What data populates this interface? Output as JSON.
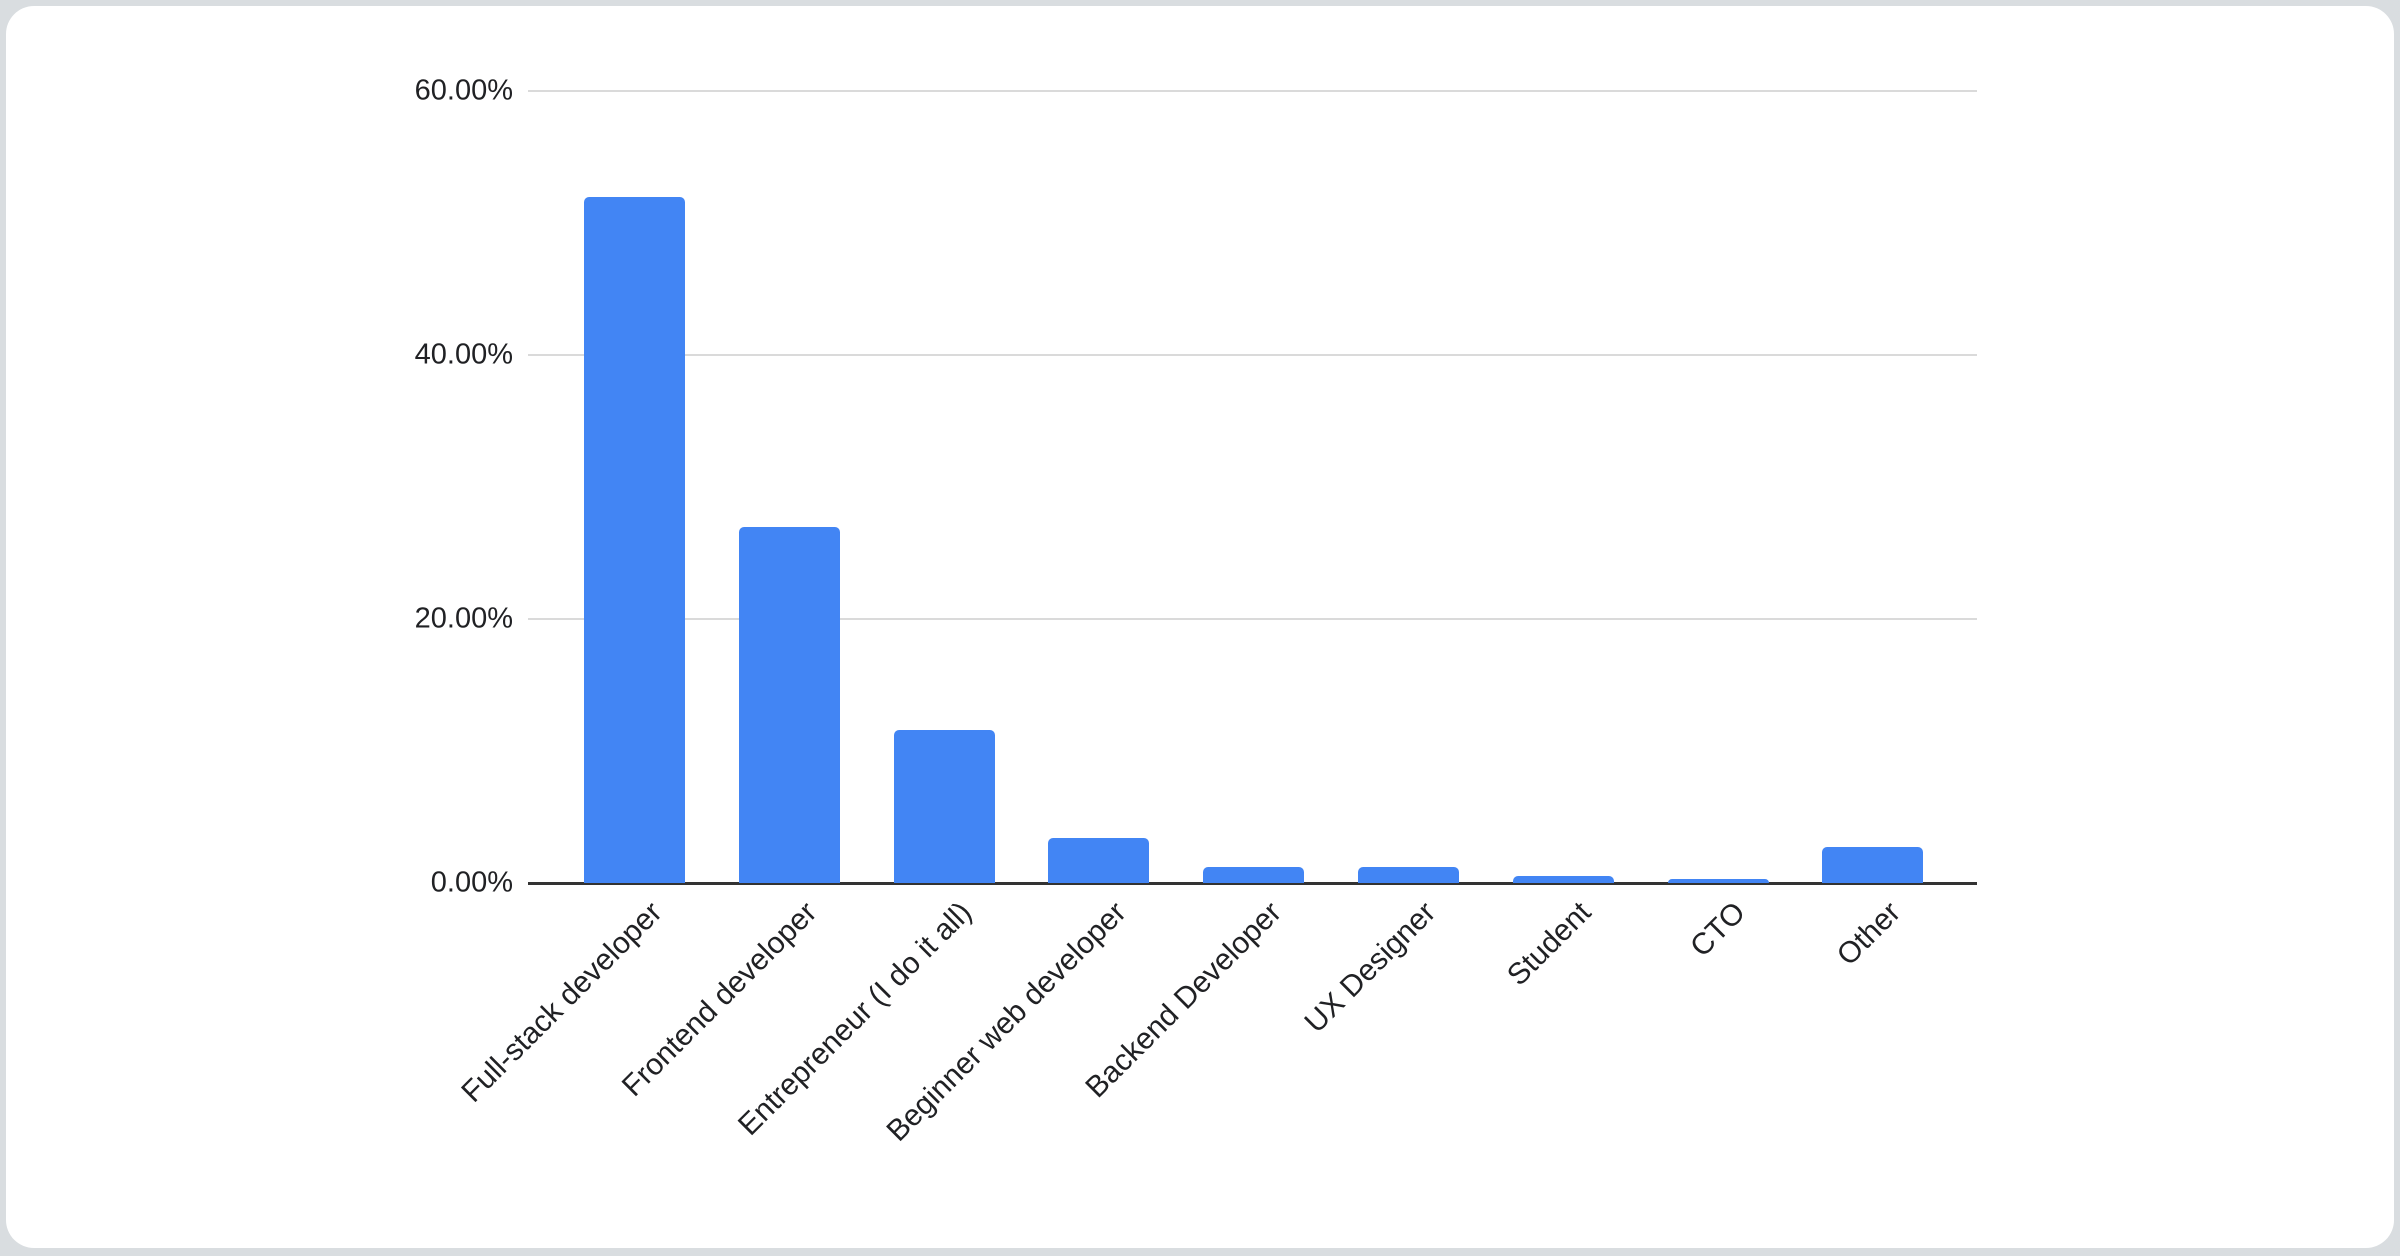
{
  "page": {
    "background_color": "#d9dde0",
    "card_color": "#ffffff"
  },
  "chart_data": {
    "type": "bar",
    "title": "",
    "xlabel": "",
    "ylabel": "",
    "categories": [
      "Full-stack developer",
      "Frontend developer",
      "Entrepreneur (I do it all)",
      "Beginner web developer",
      "Backend Developer",
      "UX Designer",
      "Student",
      "CTO",
      "Other"
    ],
    "values": [
      52.0,
      27.0,
      11.6,
      3.4,
      1.2,
      1.2,
      0.5,
      0.3,
      2.7
    ],
    "unit": "%",
    "ylim": [
      0,
      60
    ],
    "yticks": {
      "labels": [
        "0.00%",
        "20.00%",
        "40.00%",
        "60.00%"
      ],
      "values": [
        0,
        20,
        40,
        60
      ]
    },
    "grid": "on",
    "legend": "none",
    "x_label_rotation_deg": -45,
    "bar_color": "#4285f4",
    "gridline_color": "#dadada",
    "axis_line_color": "#333333",
    "label_color": "#202124"
  }
}
